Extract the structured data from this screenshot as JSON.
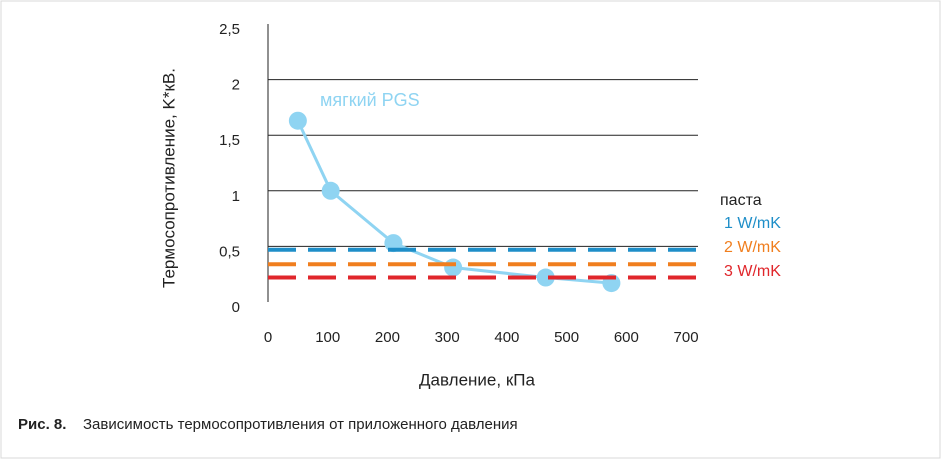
{
  "chart_data": {
    "type": "line",
    "y_label": "Термосопротивление, K*кВ.",
    "x_label": "Давление, кПа",
    "caption_prefix": "Рис. 8.",
    "caption": "Зависимость термосопротивления от приложенного давления",
    "legend_title": "паста",
    "xlim": [
      0,
      720
    ],
    "xticks": [
      0,
      100,
      200,
      300,
      400,
      500,
      600,
      700
    ],
    "ylim": [
      0,
      2.5
    ],
    "yticks": [
      0,
      {
        "value": 0.5,
        "label": "0,5"
      },
      1,
      {
        "value": 1.5,
        "label": "1,5"
      },
      2,
      {
        "value": 2.5,
        "label": "2,5"
      }
    ],
    "grid": true,
    "series": [
      {
        "name": "мягкий PGS",
        "color": "#8fd4f2",
        "x": [
          50,
          105,
          210,
          310,
          465,
          575
        ],
        "values": [
          1.63,
          1.0,
          0.53,
          0.31,
          0.22,
          0.17
        ],
        "markers": true
      },
      {
        "name": "1 W/mK",
        "color": "#1e8ec8",
        "x": [
          0,
          720
        ],
        "values": [
          0.47,
          0.47
        ],
        "dashed": true
      },
      {
        "name": "2 W/mK",
        "color": "#f07e1e",
        "x": [
          0,
          720
        ],
        "values": [
          0.34,
          0.34
        ],
        "dashed": true
      },
      {
        "name": "3 W/mK",
        "color": "#e0262b",
        "x": [
          0,
          720
        ],
        "values": [
          0.22,
          0.22
        ],
        "dashed": true
      }
    ]
  }
}
